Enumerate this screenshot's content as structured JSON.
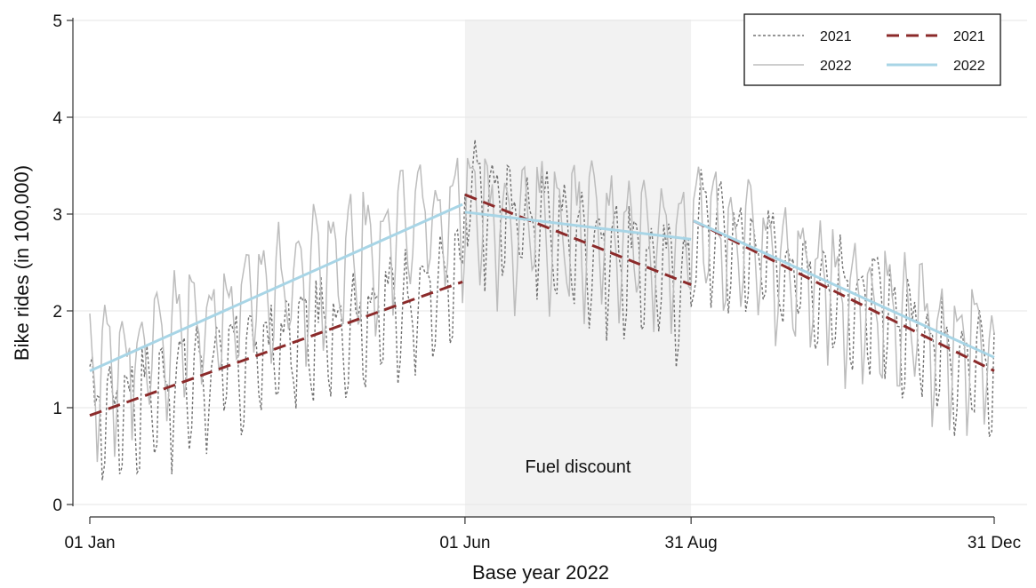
{
  "chart_data": {
    "type": "line",
    "title": "",
    "xlabel": "Base year 2022",
    "ylabel": "Bike rides (in 100,000)",
    "ylim": [
      0,
      5
    ],
    "y_ticks": [
      "0",
      "1",
      "2",
      "3",
      "4",
      "5"
    ],
    "x_ticks": [
      {
        "label": "01 Jan",
        "day": 1
      },
      {
        "label": "01 Jun",
        "day": 152
      },
      {
        "label": "31 Aug",
        "day": 243
      },
      {
        "label": "31 Dec",
        "day": 365
      }
    ],
    "x_range_days": [
      1,
      365
    ],
    "grid": "horizontal",
    "legend_position": "top-right",
    "shaded_region": {
      "label": "Fuel discount",
      "start": "01 Jun",
      "end": "31 Aug",
      "start_day": 152,
      "end_day": 243,
      "color": "#f2f2f2"
    },
    "series": [
      {
        "name": "2021",
        "style": "dotted",
        "color": "#707070",
        "kind": "daily",
        "base_segments": [
          {
            "from_day": 1,
            "to_day": 151,
            "start": 0.92,
            "end": 2.3
          },
          {
            "from_day": 152,
            "to_day": 243,
            "start": 3.2,
            "end": 2.27
          },
          {
            "from_day": 244,
            "to_day": 365,
            "start": 2.93,
            "end": 1.38
          }
        ],
        "weekly_swing": [
          -0.62,
          0.38,
          0.48,
          0.42,
          0.3,
          -0.1,
          -0.86
        ],
        "amplitude": 0.85
      },
      {
        "name": "2022",
        "style": "solid-thin",
        "color": "#bdbdbd",
        "kind": "daily",
        "base_segments": [
          {
            "from_day": 1,
            "to_day": 151,
            "start": 1.38,
            "end": 3.1
          },
          {
            "from_day": 152,
            "to_day": 243,
            "start": 3.02,
            "end": 2.74
          },
          {
            "from_day": 244,
            "to_day": 365,
            "start": 2.93,
            "end": 1.52
          }
        ],
        "weekly_swing": [
          -0.58,
          0.42,
          0.55,
          0.45,
          0.28,
          -0.18,
          -0.94
        ],
        "amplitude": 0.9
      },
      {
        "name": "2021",
        "style": "dashed",
        "color": "#8b2a2a",
        "kind": "trend",
        "segments": [
          {
            "from_day": 1,
            "to_day": 151,
            "start": 0.92,
            "end": 2.3
          },
          {
            "from_day": 152,
            "to_day": 243,
            "start": 3.2,
            "end": 2.27
          },
          {
            "from_day": 244,
            "to_day": 365,
            "start": 2.93,
            "end": 1.38
          }
        ]
      },
      {
        "name": "2022",
        "style": "solid",
        "color": "#a8d5e6",
        "kind": "trend",
        "segments": [
          {
            "from_day": 1,
            "to_day": 151,
            "start": 1.38,
            "end": 3.1
          },
          {
            "from_day": 152,
            "to_day": 243,
            "start": 3.02,
            "end": 2.74
          },
          {
            "from_day": 244,
            "to_day": 365,
            "start": 2.93,
            "end": 1.52
          }
        ]
      }
    ]
  }
}
